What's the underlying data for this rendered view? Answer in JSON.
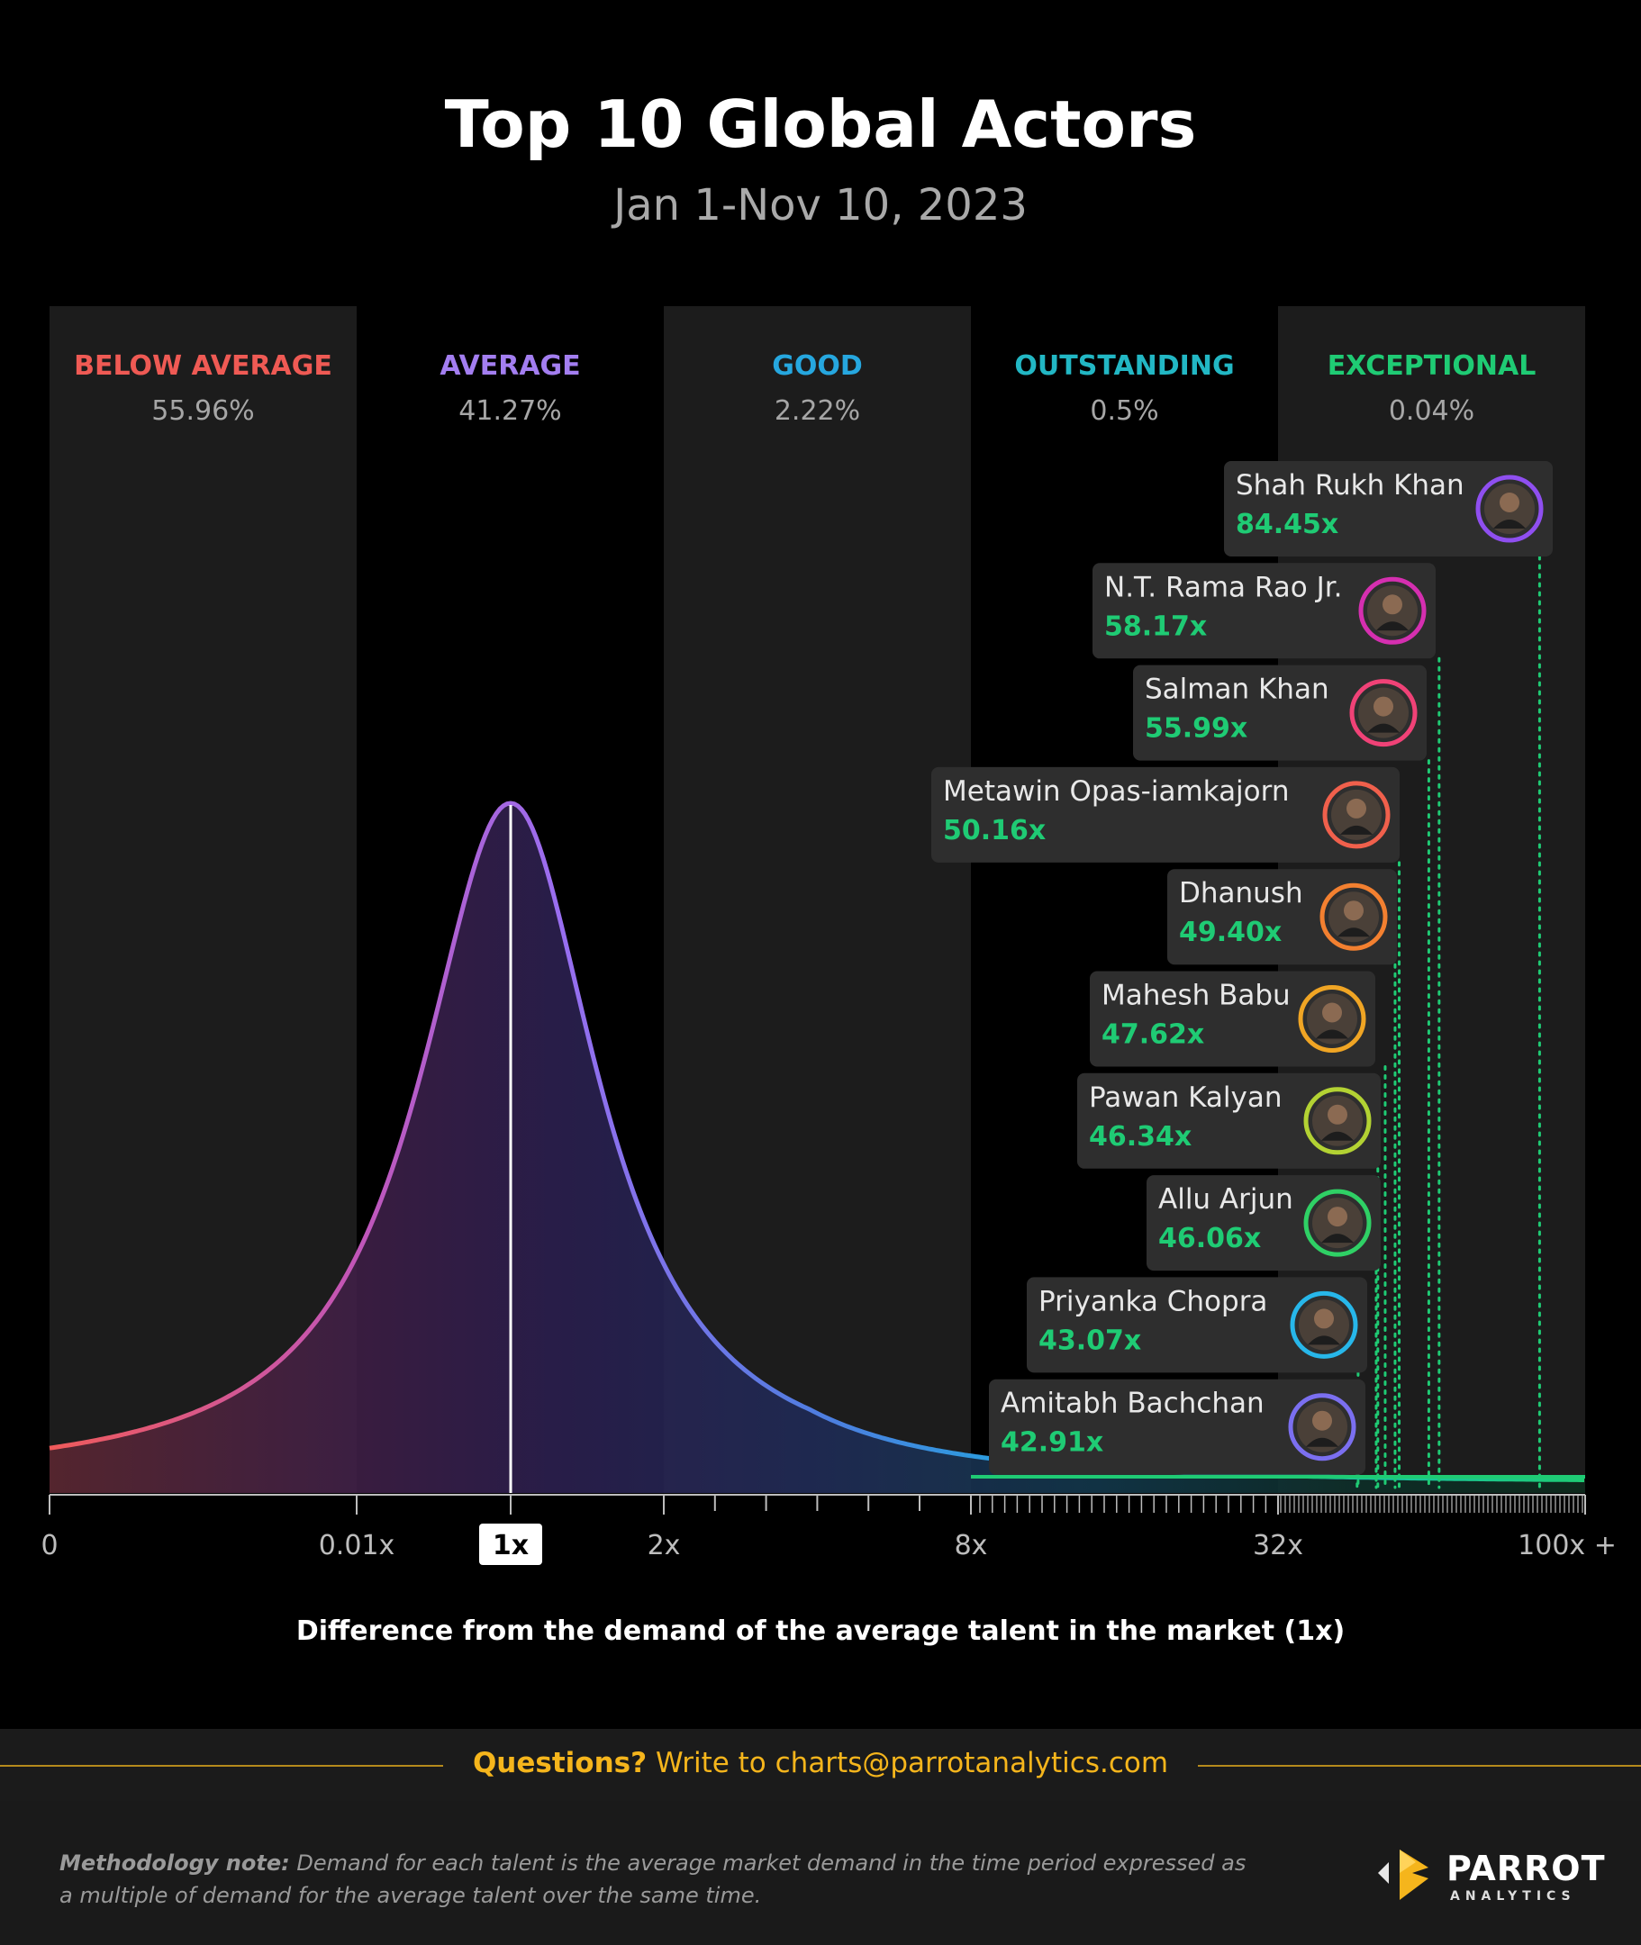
{
  "header": {
    "title": "Top 10 Global Actors",
    "subtitle": "Jan 1-Nov 10, 2023"
  },
  "chart_data": {
    "type": "distribution",
    "x_axis_title": "Difference from the demand of the average talent in the market (1x)",
    "tick_labels": [
      "0",
      "0.01x",
      "1x",
      "2x",
      "8x",
      "32x",
      "100x +"
    ],
    "highlighted_tick": "1x",
    "bands": [
      {
        "label": "BELOW AVERAGE",
        "share": "55.96%",
        "color": "#ef5a54"
      },
      {
        "label": "AVERAGE",
        "share": "41.27%",
        "color": "#a37ef0"
      },
      {
        "label": "GOOD",
        "share": "2.22%",
        "color": "#26a7df"
      },
      {
        "label": "OUTSTANDING",
        "share": "0.5%",
        "color": "#22b7c4"
      },
      {
        "label": "EXCEPTIONAL",
        "share": "0.04%",
        "color": "#1fcb74"
      }
    ],
    "actors": [
      {
        "name": "Shah Rukh Khan",
        "value": "84.45x",
        "demand": 84.45,
        "ring": "#8f4ff0"
      },
      {
        "name": "N.T. Rama Rao Jr.",
        "value": "58.17x",
        "demand": 58.17,
        "ring": "#d52fb0"
      },
      {
        "name": "Salman Khan",
        "value": "55.99x",
        "demand": 55.99,
        "ring": "#f04277"
      },
      {
        "name": "Metawin Opas-iamkajorn",
        "value": "50.16x",
        "demand": 50.16,
        "ring": "#f0604c"
      },
      {
        "name": "Dhanush",
        "value": "49.40x",
        "demand": 49.4,
        "ring": "#f38030"
      },
      {
        "name": "Mahesh Babu",
        "value": "47.62x",
        "demand": 47.62,
        "ring": "#f0a524"
      },
      {
        "name": "Pawan Kalyan",
        "value": "46.34x",
        "demand": 46.34,
        "ring": "#b3d233"
      },
      {
        "name": "Allu Arjun",
        "value": "46.06x",
        "demand": 46.06,
        "ring": "#2fd065"
      },
      {
        "name": "Priyanka Chopra",
        "value": "43.07x",
        "demand": 43.07,
        "ring": "#27b7ea"
      },
      {
        "name": "Amitabh Bachchan",
        "value": "42.91x",
        "demand": 42.91,
        "ring": "#7b6ff0"
      }
    ]
  },
  "footer": {
    "question_bold": "Questions?",
    "question_rest": " Write to charts@parrotanalytics.com",
    "method_bold": "Methodology note:",
    "method_text": " Demand for each talent is the average market demand in the time period expressed as a multiple of demand for the average talent over the same time.",
    "brand": "PARROT",
    "brand_sub": "ANALYTICS"
  }
}
